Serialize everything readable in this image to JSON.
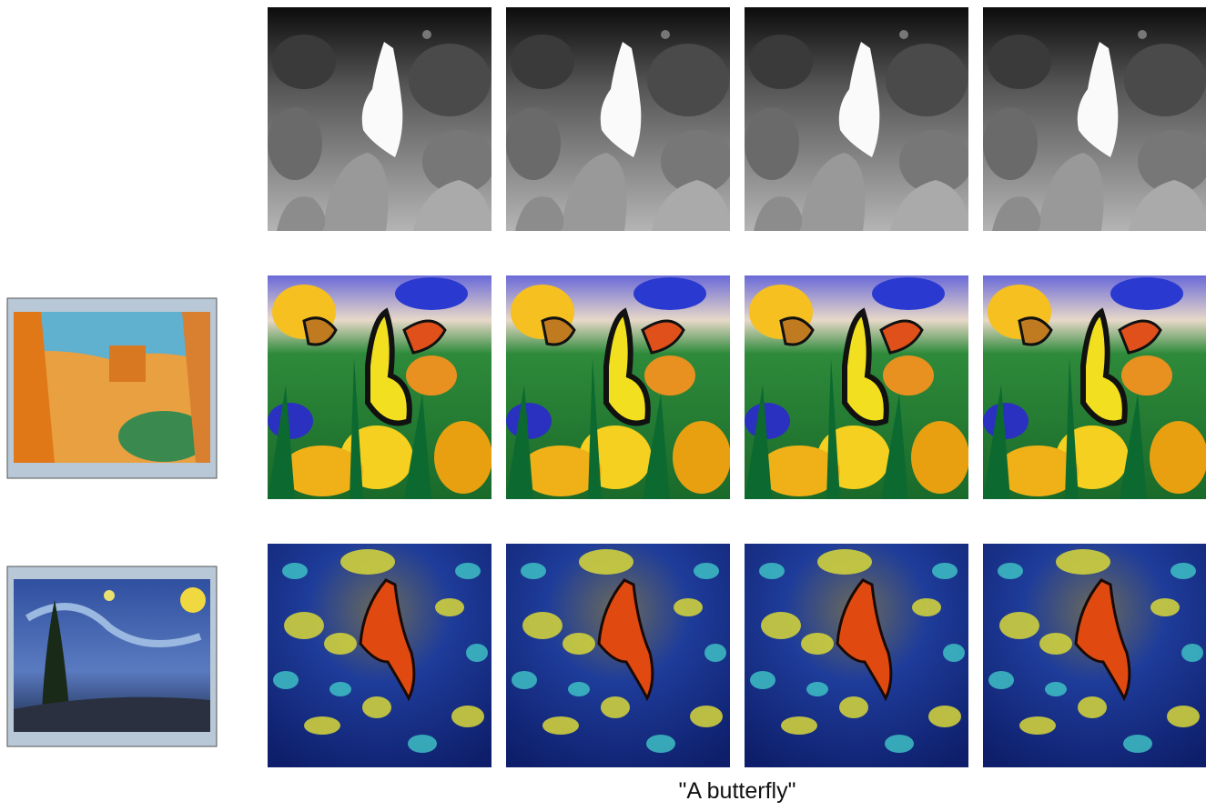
{
  "caption": "\"A butterfly\""
}
